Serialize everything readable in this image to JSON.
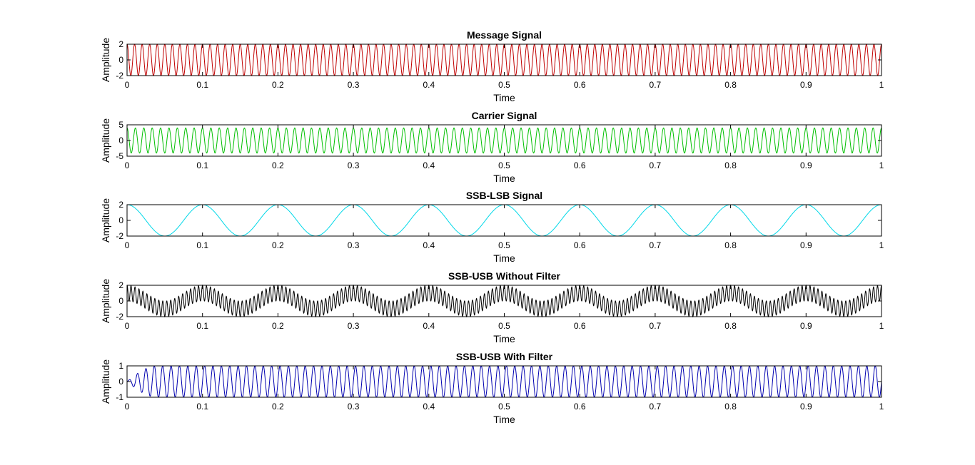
{
  "chart_data": [
    {
      "type": "line",
      "title": "Message Signal",
      "xlabel": "Time",
      "ylabel": "Amplitude",
      "xlim": [
        0,
        1
      ],
      "ylim": [
        -2,
        2
      ],
      "xticks": [
        "0",
        "0.1",
        "0.2",
        "0.3",
        "0.4",
        "0.5",
        "0.6",
        "0.7",
        "0.8",
        "0.9",
        "1"
      ],
      "yticks": [
        "-2",
        "0",
        "2"
      ],
      "series": [
        {
          "color": "#c00000",
          "signal": "cosine",
          "amplitude": 2,
          "frequency_hz": 100,
          "x_range": [
            0,
            1
          ]
        }
      ]
    },
    {
      "type": "line",
      "title": "Carrier Signal",
      "xlabel": "Time",
      "ylabel": "Amplitude",
      "xlim": [
        0,
        1
      ],
      "ylim": [
        -5,
        5
      ],
      "xticks": [
        "0",
        "0.1",
        "0.2",
        "0.3",
        "0.4",
        "0.5",
        "0.6",
        "0.7",
        "0.8",
        "0.9",
        "1"
      ],
      "yticks": [
        "-5",
        "0",
        "5"
      ],
      "series": [
        {
          "color": "#00c000",
          "signal": "cosine",
          "amplitude": 4,
          "frequency_hz": 90,
          "x_range": [
            0,
            1
          ]
        }
      ]
    },
    {
      "type": "line",
      "title": "SSB-LSB Signal",
      "xlabel": "Time",
      "ylabel": "Amplitude",
      "xlim": [
        0,
        1
      ],
      "ylim": [
        -2,
        2
      ],
      "xticks": [
        "0",
        "0.1",
        "0.2",
        "0.3",
        "0.4",
        "0.5",
        "0.6",
        "0.7",
        "0.8",
        "0.9",
        "1"
      ],
      "yticks": [
        "-2",
        "0",
        "2"
      ],
      "series": [
        {
          "color": "#00d8e8",
          "signal": "cosine",
          "amplitude": 2,
          "frequency_hz": 10,
          "x_range": [
            0,
            1
          ]
        }
      ]
    },
    {
      "type": "line",
      "title": "SSB-USB Without Filter",
      "xlabel": "Time",
      "ylabel": "Amplitude",
      "xlim": [
        0,
        1
      ],
      "ylim": [
        -2,
        2
      ],
      "xticks": [
        "0",
        "0.1",
        "0.2",
        "0.3",
        "0.4",
        "0.5",
        "0.6",
        "0.7",
        "0.8",
        "0.9",
        "1"
      ],
      "yticks": [
        "-2",
        "0",
        "2"
      ],
      "series": [
        {
          "color": "#000000",
          "signal": "sum_of_cosines",
          "amplitude": 1,
          "frequencies_hz": [
            10,
            190
          ],
          "x_range": [
            0,
            1
          ]
        }
      ]
    },
    {
      "type": "line",
      "title": "SSB-USB With Filter",
      "xlabel": "Time",
      "ylabel": "Amplitude",
      "xlim": [
        0,
        1
      ],
      "ylim": [
        -1,
        1
      ],
      "xticks": [
        "0",
        "0.1",
        "0.2",
        "0.3",
        "0.4",
        "0.5",
        "0.6",
        "0.7",
        "0.8",
        "0.9",
        "1"
      ],
      "yticks": [
        "-1",
        "0",
        "1"
      ],
      "series": [
        {
          "color": "#0000b0",
          "signal": "filtered_sine",
          "amplitude": 1,
          "frequency_hz": 90,
          "settling_time": 0.04,
          "x_range": [
            0,
            1
          ]
        }
      ]
    }
  ]
}
